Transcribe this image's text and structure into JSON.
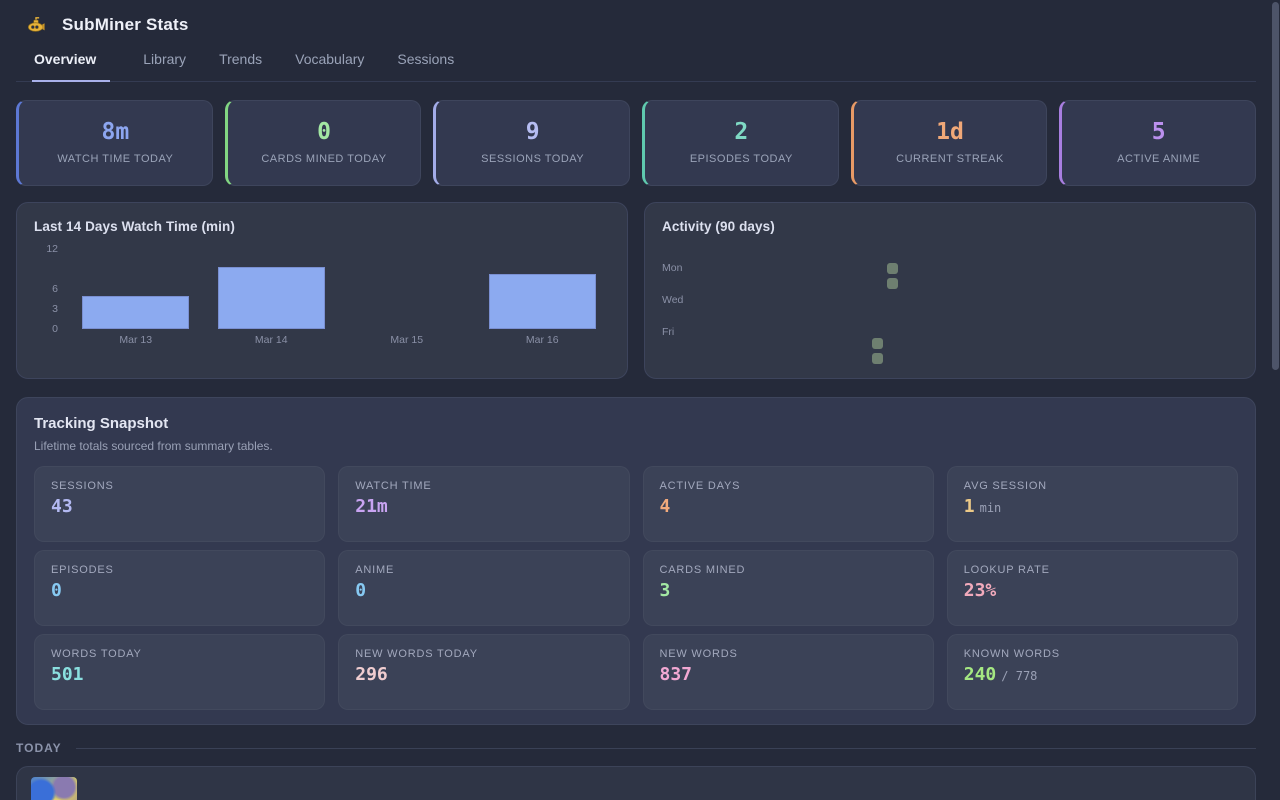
{
  "app": {
    "title": "SubMiner Stats"
  },
  "nav": {
    "tabs": [
      {
        "label": "Overview",
        "active": true
      },
      {
        "label": "Library",
        "active": false
      },
      {
        "label": "Trends",
        "active": false
      },
      {
        "label": "Vocabulary",
        "active": false
      },
      {
        "label": "Sessions",
        "active": false
      }
    ]
  },
  "stat_cards": [
    {
      "value": "8m",
      "label": "WATCH TIME TODAY",
      "color": "#8da6f0",
      "accent": "#5d78d4"
    },
    {
      "value": "0",
      "label": "CARDS MINED TODAY",
      "color": "#a3e8a3",
      "accent": "#82d682"
    },
    {
      "value": "9",
      "label": "SESSIONS TODAY",
      "color": "#b6bdf2",
      "accent": "#a3ace8"
    },
    {
      "value": "2",
      "label": "EPISODES TODAY",
      "color": "#7fd9c4",
      "accent": "#5fc9ae"
    },
    {
      "value": "1d",
      "label": "CURRENT STREAK",
      "color": "#f0a878",
      "accent": "#e89a66"
    },
    {
      "value": "5",
      "label": "ACTIVE ANIME",
      "color": "#bb90ee",
      "accent": "#a87ee0"
    }
  ],
  "chart_data": [
    {
      "type": "bar",
      "title": "Last 14 Days Watch Time (min)",
      "categories": [
        "Mar 13",
        "Mar 14",
        "Mar 15",
        "Mar 16"
      ],
      "values": [
        5,
        9.3,
        0,
        8.3
      ],
      "xlabel": "",
      "ylabel": "minutes",
      "yticks": [
        0,
        3,
        6,
        12
      ],
      "ylim": [
        0,
        12
      ],
      "grid": false,
      "legend": "none",
      "bar_color": "#8caaf0"
    },
    {
      "type": "heatmap",
      "title": "Activity (90 days)",
      "day_labels": [
        "Mon",
        "Wed",
        "Fri"
      ],
      "cell_color": "#6e7f70",
      "cells": [
        {
          "col": 12,
          "row": 1
        },
        {
          "col": 12,
          "row": 2
        },
        {
          "col": 11,
          "row": 6
        },
        {
          "col": 11,
          "row": 7
        }
      ]
    }
  ],
  "snapshot": {
    "title": "Tracking Snapshot",
    "subtitle": "Lifetime totals sourced from summary tables.",
    "metrics": [
      {
        "label": "SESSIONS",
        "value": "43",
        "suffix": "",
        "color": "#b3b9f2"
      },
      {
        "label": "WATCH TIME",
        "value": "21m",
        "suffix": "",
        "color": "#c9a4f2"
      },
      {
        "label": "ACTIVE DAYS",
        "value": "4",
        "suffix": "",
        "color": "#f2aa7c"
      },
      {
        "label": "AVG SESSION",
        "value": "1",
        "suffix": "min",
        "color": "#ecc987"
      },
      {
        "label": "EPISODES",
        "value": "0",
        "suffix": "",
        "color": "#87c9f2"
      },
      {
        "label": "ANIME",
        "value": "0",
        "suffix": "",
        "color": "#87c9f2"
      },
      {
        "label": "CARDS MINED",
        "value": "3",
        "suffix": "",
        "color": "#a3e8a3"
      },
      {
        "label": "LOOKUP RATE",
        "value": "23%",
        "suffix": "",
        "color": "#f2aabc"
      },
      {
        "label": "WORDS TODAY",
        "value": "501",
        "suffix": "",
        "color": "#8adfdf"
      },
      {
        "label": "NEW WORDS TODAY",
        "value": "296",
        "suffix": "",
        "color": "#f0cdd0"
      },
      {
        "label": "NEW WORDS",
        "value": "837",
        "suffix": "",
        "color": "#f2a8d3"
      },
      {
        "label": "KNOWN WORDS",
        "value": "240",
        "suffix": "/ 778",
        "color": "#a5e882"
      }
    ]
  },
  "today": {
    "label": "TODAY"
  }
}
